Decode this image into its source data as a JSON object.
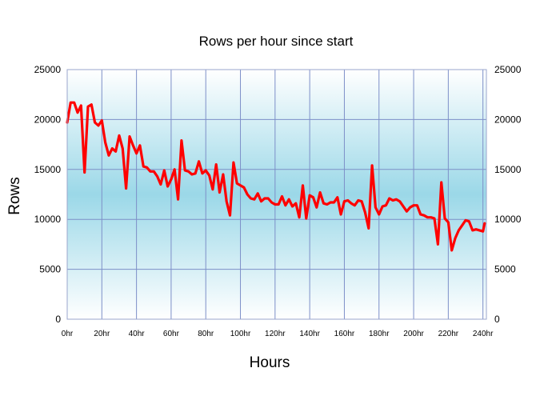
{
  "chart_data": {
    "type": "line",
    "title": "Rows per hour since start",
    "xlabel": "Hours",
    "ylabel": "Rows",
    "xlim": [
      0,
      242
    ],
    "ylim": [
      0,
      25000
    ],
    "x_ticks": [
      0,
      20,
      40,
      60,
      80,
      100,
      120,
      140,
      160,
      180,
      200,
      220,
      240
    ],
    "x_tick_labels": [
      "0hr",
      "20hr",
      "40hr",
      "60hr",
      "80hr",
      "100hr",
      "120hr",
      "140hr",
      "160hr",
      "180hr",
      "200hr",
      "220hr",
      "240hr"
    ],
    "y_ticks": [
      0,
      5000,
      10000,
      15000,
      20000,
      25000
    ],
    "y_tick_labels": [
      "0",
      "5000",
      "10000",
      "15000",
      "20000",
      "25000"
    ],
    "right_axis": true,
    "grid": true,
    "line_color": "#ff0000",
    "background_gradient": [
      "#ffffff",
      "#9bd8e8",
      "#ffffff"
    ],
    "grid_color": "#7d8fc8",
    "series": [
      {
        "x": [
          0,
          2,
          4,
          6,
          8,
          10,
          12,
          14,
          16,
          18,
          20,
          22,
          24,
          26,
          28,
          30,
          32,
          34,
          36,
          38,
          40,
          42,
          44,
          46,
          48,
          50,
          52,
          54,
          56,
          58,
          60,
          62,
          64,
          66,
          68,
          70,
          72,
          74,
          76,
          78,
          80,
          82,
          84,
          86,
          88,
          90,
          92,
          94,
          96,
          98,
          100,
          102,
          104,
          106,
          108,
          110,
          112,
          114,
          116,
          118,
          120,
          122,
          124,
          126,
          128,
          130,
          132,
          134,
          136,
          138,
          140,
          142,
          144,
          146,
          148,
          150,
          152,
          154,
          156,
          158,
          160,
          162,
          164,
          166,
          168,
          170,
          172,
          174,
          176,
          178,
          180,
          182,
          184,
          186,
          188,
          190,
          192,
          194,
          196,
          198,
          200,
          202,
          204,
          206,
          208,
          210,
          212,
          214,
          216,
          218,
          220,
          222,
          224,
          226,
          228,
          230,
          232,
          234,
          236,
          238,
          240,
          241
        ],
        "values": [
          19700,
          21700,
          21700,
          20700,
          21400,
          14700,
          21300,
          21500,
          19700,
          19400,
          19900,
          17700,
          16400,
          17100,
          16800,
          18400,
          17100,
          13100,
          18300,
          17400,
          16600,
          17400,
          15300,
          15200,
          14800,
          14800,
          14300,
          13500,
          14900,
          13300,
          14000,
          15000,
          12000,
          17900,
          14900,
          14800,
          14500,
          14600,
          15800,
          14600,
          14900,
          14400,
          13000,
          15500,
          12700,
          14500,
          11800,
          10400,
          15700,
          13600,
          13400,
          13200,
          12500,
          12100,
          12000,
          12600,
          11800,
          12100,
          12100,
          11700,
          11500,
          11500,
          12300,
          11400,
          12000,
          11300,
          11600,
          10200,
          13400,
          10100,
          12400,
          12200,
          11200,
          12700,
          11600,
          11500,
          11700,
          11700,
          12200,
          10500,
          11800,
          11900,
          11600,
          11400,
          11900,
          11800,
          10700,
          9100,
          15400,
          11200,
          10500,
          11300,
          11400,
          12100,
          11900,
          12000,
          11800,
          11300,
          10800,
          11200,
          11400,
          11400,
          10500,
          10400,
          10200,
          10200,
          10100,
          7500,
          13700,
          10100,
          9700,
          6900,
          8100,
          8900,
          9400,
          9900,
          9800,
          8900,
          9000,
          8900,
          8800,
          9600
        ]
      }
    ]
  }
}
